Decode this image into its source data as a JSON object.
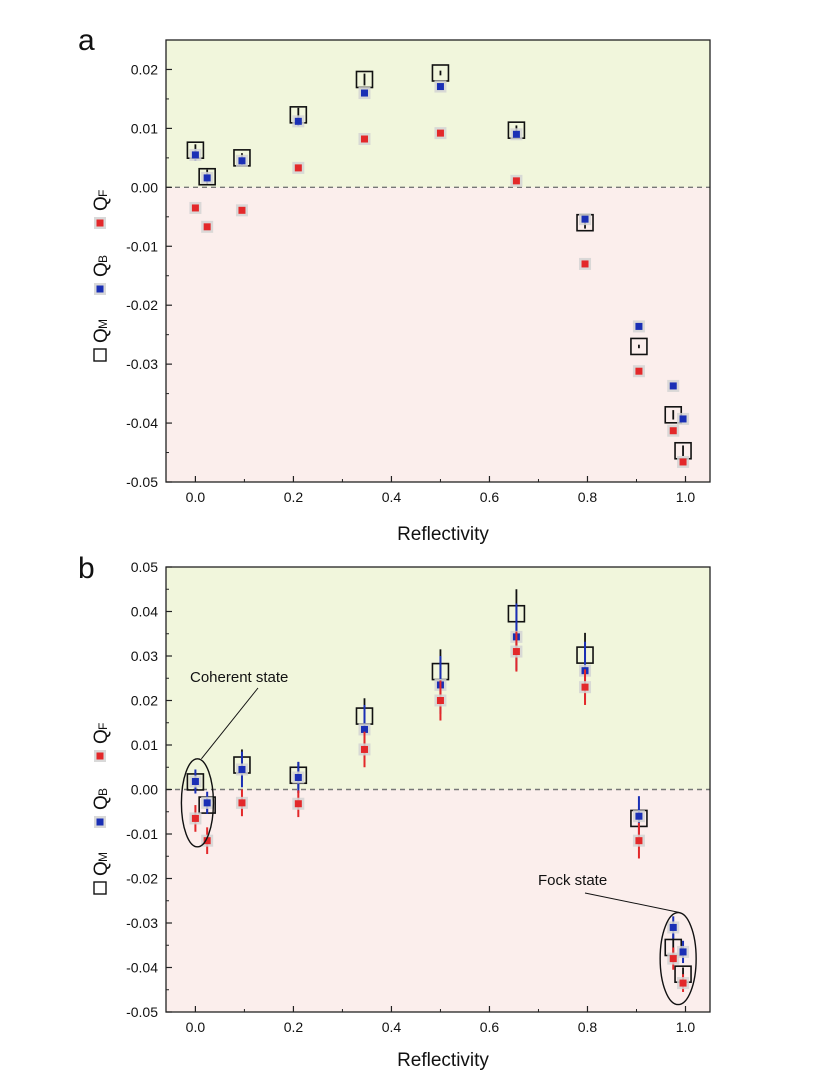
{
  "chart_data": [
    {
      "panel_label": "a",
      "type": "scatter",
      "xlabel": "Reflectivity",
      "ylabel_legend": [
        {
          "symbol": "open-square",
          "text": "Q",
          "sub": "M"
        },
        {
          "symbol": "blue-square",
          "text": "Q",
          "sub": "B"
        },
        {
          "symbol": "red-square",
          "text": "Q",
          "sub": "F"
        }
      ],
      "xlim": [
        -0.06,
        1.05
      ],
      "ylim": [
        -0.05,
        0.025
      ],
      "xticks": [
        0.0,
        0.2,
        0.4,
        0.6,
        0.8,
        1.0
      ],
      "xtick_labels": [
        "0.0",
        "0.2",
        "0.4",
        "0.6",
        "0.8",
        "1.0"
      ],
      "yticks": [
        0.02,
        0.01,
        0.0,
        -0.01,
        -0.02,
        -0.03,
        -0.04,
        -0.05
      ],
      "ytick_labels": [
        "0.02",
        "0.01",
        "0.00",
        "-0.01",
        "-0.02",
        "-0.03",
        "-0.04",
        "-0.05"
      ],
      "zero_line": 0.0,
      "colors": {
        "positive_region": "#f1f6dc",
        "negative_region": "#fbeeec",
        "QB": "#1a2fb5",
        "QF": "#e3282a",
        "QM": "#111111"
      },
      "series": [
        {
          "name": "QM",
          "marker": "open-square",
          "x": [
            0.0,
            0.024,
            0.095,
            0.21,
            0.345,
            0.5,
            0.655,
            0.795,
            0.905,
            0.975,
            0.995
          ],
          "y": [
            0.0063,
            0.0018,
            0.005,
            0.0123,
            0.0183,
            0.0194,
            0.0097,
            -0.006,
            -0.027,
            -0.0386,
            -0.0447
          ],
          "err": [
            0.001,
            0.0012,
            0.0008,
            0.0012,
            0.001,
            0.0004,
            0.0008,
            0.001,
            0.0003,
            0.0008,
            0.0009
          ]
        },
        {
          "name": "QB",
          "marker": "filled-square",
          "x": [
            0.0,
            0.024,
            0.095,
            0.21,
            0.345,
            0.5,
            0.655,
            0.795,
            0.905,
            0.975,
            0.995
          ],
          "y": [
            0.0055,
            0.0016,
            0.0045,
            0.0112,
            0.016,
            0.0171,
            0.009,
            -0.0054,
            -0.0236,
            -0.0337,
            -0.0393
          ],
          "err": [
            0.001,
            0.0008,
            0.0008,
            0.0008,
            0.0005,
            0.0004,
            0.0005,
            0.0004,
            0.0002,
            0.0002,
            0.0003
          ]
        },
        {
          "name": "QF",
          "marker": "filled-square",
          "x": [
            0.0,
            0.024,
            0.095,
            0.21,
            0.345,
            0.5,
            0.655,
            0.795,
            0.905,
            0.975,
            0.995
          ],
          "y": [
            -0.0035,
            -0.0067,
            -0.0039,
            0.0033,
            0.0082,
            0.0092,
            0.0011,
            -0.013,
            -0.0312,
            -0.0413,
            -0.0466
          ],
          "err": [
            0.0004,
            0.0004,
            0.0004,
            0.0004,
            0.0004,
            0.0004,
            0.0003,
            0.0003,
            0.0002,
            0.0002,
            0.0002
          ]
        }
      ]
    },
    {
      "panel_label": "b",
      "type": "scatter",
      "xlabel": "Reflectivity",
      "ylabel_legend": [
        {
          "symbol": "open-square",
          "text": "Q",
          "sub": "M"
        },
        {
          "symbol": "blue-square",
          "text": "Q",
          "sub": "B"
        },
        {
          "symbol": "red-square",
          "text": "Q",
          "sub": "F"
        }
      ],
      "xlim": [
        -0.06,
        1.05
      ],
      "ylim": [
        -0.05,
        0.05
      ],
      "xticks": [
        0.0,
        0.2,
        0.4,
        0.6,
        0.8,
        1.0
      ],
      "xtick_labels": [
        "0.0",
        "0.2",
        "0.4",
        "0.6",
        "0.8",
        "1.0"
      ],
      "yticks": [
        0.05,
        0.04,
        0.03,
        0.02,
        0.01,
        0.0,
        -0.01,
        -0.02,
        -0.03,
        -0.04,
        -0.05
      ],
      "ytick_labels": [
        "0.05",
        "0.04",
        "0.03",
        "0.02",
        "0.01",
        "0.00",
        "-0.01",
        "-0.02",
        "-0.03",
        "-0.04",
        "-0.05"
      ],
      "zero_line": 0.0,
      "colors": {
        "positive_region": "#f1f6dc",
        "negative_region": "#fbeeec",
        "QB": "#1a2fb5",
        "QF": "#e3282a",
        "QM": "#111111"
      },
      "annotations": [
        {
          "text": "Coherent state",
          "target_x": 0.0,
          "target_y": -0.003
        },
        {
          "text": "Fock state",
          "target_x": 0.985,
          "target_y": -0.038
        }
      ],
      "series": [
        {
          "name": "QM",
          "marker": "open-square",
          "x": [
            0.0,
            0.024,
            0.095,
            0.21,
            0.345,
            0.5,
            0.655,
            0.795,
            0.905,
            0.975,
            0.995
          ],
          "y": [
            0.0017,
            -0.0035,
            0.0055,
            0.0032,
            0.0165,
            0.0265,
            0.0395,
            0.0302,
            -0.0065,
            -0.0355,
            -0.0415
          ],
          "err": [
            0.002,
            0.002,
            0.0035,
            0.003,
            0.004,
            0.005,
            0.0055,
            0.005,
            0.001,
            0.003,
            0.0015
          ]
        },
        {
          "name": "QB",
          "marker": "filled-square",
          "x": [
            0.0,
            0.024,
            0.095,
            0.21,
            0.345,
            0.5,
            0.655,
            0.795,
            0.905,
            0.975,
            0.995
          ],
          "y": [
            0.0018,
            -0.003,
            0.0045,
            0.0027,
            0.0135,
            0.0235,
            0.0343,
            0.0267,
            -0.006,
            -0.031,
            -0.0365
          ],
          "err": [
            0.0027,
            0.0025,
            0.004,
            0.0035,
            0.0055,
            0.0065,
            0.0075,
            0.0065,
            0.0045,
            0.0025,
            0.0025
          ]
        },
        {
          "name": "QF",
          "marker": "filled-square",
          "x": [
            0.0,
            0.024,
            0.095,
            0.21,
            0.345,
            0.5,
            0.655,
            0.795,
            0.905,
            0.975,
            0.995
          ],
          "y": [
            -0.0065,
            -0.0115,
            -0.003,
            -0.0032,
            0.009,
            0.02,
            0.031,
            0.023,
            -0.0115,
            -0.038,
            -0.0435
          ],
          "err": [
            0.003,
            0.003,
            0.003,
            0.003,
            0.004,
            0.0045,
            0.0045,
            0.004,
            0.004,
            0.0025,
            0.002
          ]
        }
      ]
    }
  ]
}
